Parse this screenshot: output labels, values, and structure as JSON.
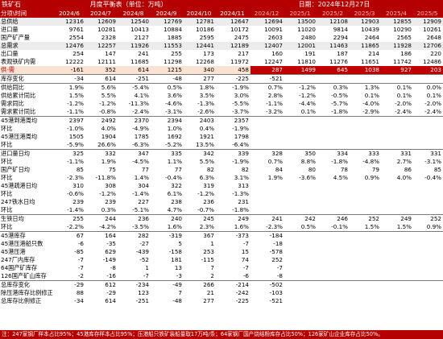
{
  "header": {
    "left": "铁矿石",
    "center": "月度平衡表（单位：万吨）",
    "right": "日期：2024年12月27日"
  },
  "corner_label": "分项\\时间",
  "months": [
    "2024/6",
    "2024/7",
    "2024/8",
    "2024/9",
    "2024/10",
    "2024/11",
    "2024/12",
    "2025/1",
    "2025/2",
    "2025/3",
    "2025/4",
    "2025/5"
  ],
  "rows": [
    {
      "label": "总供给",
      "values": [
        "12316",
        "12609",
        "12540",
        "12769",
        "12781",
        "12647",
        "12694",
        "13500",
        "12108",
        "12903",
        "12855",
        "12909"
      ],
      "style": "hl"
    },
    {
      "label": "进口量",
      "values": [
        "9761",
        "10281",
        "10413",
        "10884",
        "10186",
        "10172",
        "10091",
        "11020",
        "9814",
        "10439",
        "10290",
        "10261"
      ]
    },
    {
      "label": "国产矿产量",
      "values": [
        "2554",
        "2328",
        "2127",
        "1885",
        "2595",
        "2475",
        "2603",
        "2480",
        "2294",
        "2464",
        "2565",
        "2648"
      ]
    },
    {
      "label": "总需求",
      "values": [
        "12476",
        "12257",
        "11926",
        "11553",
        "12441",
        "12189",
        "12407",
        "12001",
        "11463",
        "11865",
        "11928",
        "12706"
      ],
      "style": "hl"
    },
    {
      "label": "出口量",
      "values": [
        "254",
        "147",
        "241",
        "255",
        "173",
        "217",
        "160",
        "191",
        "187",
        "214",
        "186",
        "220"
      ]
    },
    {
      "label": "表观铁矿内需",
      "values": [
        "12222",
        "12111",
        "11685",
        "11298",
        "12268",
        "11972",
        "12247",
        "11810",
        "11276",
        "11651",
        "11742",
        "12486"
      ]
    },
    {
      "label": "供-需",
      "values": [
        "-161",
        "352",
        "614",
        "1215",
        "340",
        "458",
        "287",
        "1499",
        "645",
        "1038",
        "927",
        "203"
      ],
      "style": "sd"
    },
    {
      "label": "库存变化",
      "values": [
        "-34",
        "614",
        "-251",
        "-48",
        "277",
        "-225",
        "-521",
        "",
        "",
        "",
        "",
        ""
      ],
      "style": "sep"
    },
    {
      "label": "供给同比",
      "values": [
        "1.9%",
        "5.6%",
        "-5.4%",
        "0.5%",
        "1.8%",
        "-1.9%",
        "0.7%",
        "-1.2%",
        "0.3%",
        "1.3%",
        "0.1%",
        "0.0%"
      ],
      "style": "sep"
    },
    {
      "label": "供给累计同比",
      "values": [
        "1.5%",
        "5.5%",
        "4.1%",
        "3.6%",
        "3.5%",
        "3.0%",
        "2.8%",
        "-1.2%",
        "-0.5%",
        "0.1%",
        "0.1%",
        "0.1%"
      ]
    },
    {
      "label": "需求同比",
      "values": [
        "-1.2%",
        "-1.2%",
        "-11.3%",
        "-4.6%",
        "-1.3%",
        "-5.5%",
        "-1.1%",
        "-4.4%",
        "-5.7%",
        "-4.0%",
        "-2.0%",
        "-2.0%"
      ]
    },
    {
      "label": "需求累计同比",
      "values": [
        "-1.1%",
        "-0.8%",
        "-2.4%",
        "-3.1%",
        "-2.6%",
        "-3.7%",
        "-3.2%",
        "0.1%",
        "-1.8%",
        "-2.9%",
        "-2.4%",
        "-2.4%"
      ]
    },
    {
      "label": "45港到港周均",
      "values": [
        "2397",
        "2492",
        "2370",
        "2394",
        "2403",
        "2357",
        "",
        "",
        "",
        "",
        "",
        ""
      ],
      "style": "sep"
    },
    {
      "label": "环比",
      "values": [
        "-1.0%",
        "4.0%",
        "-4.9%",
        "1.0%",
        "0.4%",
        "-1.9%",
        "",
        "",
        "",
        "",
        "",
        ""
      ]
    },
    {
      "label": "45港压港周均",
      "values": [
        "1505",
        "1904",
        "1785",
        "1692",
        "1921",
        "1798",
        "",
        "",
        "",
        "",
        "",
        ""
      ]
    },
    {
      "label": "环比",
      "values": [
        "-5.9%",
        "26.6%",
        "-6.3%",
        "-5.2%",
        "13.5%",
        "-6.4%",
        "",
        "",
        "",
        "",
        "",
        ""
      ]
    },
    {
      "label": "进口量日均",
      "values": [
        "325",
        "332",
        "347",
        "335",
        "342",
        "339",
        "328",
        "350",
        "334",
        "333",
        "331",
        "331"
      ],
      "style": "sep"
    },
    {
      "label": "环比",
      "values": [
        "-1.1%",
        "1.9%",
        "-4.5%",
        "1.1%",
        "5.5%",
        "-1.9%",
        "0.7%",
        "8.8%",
        "-1.8%",
        "-4.8%",
        "2.7%",
        "-3.1%"
      ]
    },
    {
      "label": "国产矿日均",
      "values": [
        "85",
        "75",
        "77",
        "77",
        "82",
        "82",
        "84",
        "80",
        "78",
        "79",
        "86",
        "85"
      ]
    },
    {
      "label": "环比",
      "values": [
        "-2.3%",
        "-11.8%",
        "1.4%",
        "-0.4%",
        "6.3%",
        "3.1%",
        "1.9%",
        "-3.6%",
        "4.5%",
        "0.9%",
        "4.0%",
        "-0.4%"
      ]
    },
    {
      "label": "45港疏港日均",
      "values": [
        "310",
        "308",
        "304",
        "322",
        "319",
        "313",
        "",
        "",
        "",
        "",
        "",
        ""
      ]
    },
    {
      "label": "环比",
      "values": [
        "-0.6%",
        "-1.2%",
        "-1.4%",
        "6.1%",
        "-1.2%",
        "-1.3%",
        "",
        "",
        "",
        "",
        "",
        ""
      ]
    },
    {
      "label": "247铁水日均",
      "values": [
        "239",
        "239",
        "227",
        "238",
        "236",
        "231",
        "",
        "",
        "",
        "",
        "",
        ""
      ]
    },
    {
      "label": "环比",
      "values": [
        "-1.4%",
        "0.3%",
        "-5.1%",
        "4.7%",
        "-0.7%",
        "-1.8%",
        "",
        "",
        "",
        "",
        "",
        ""
      ]
    },
    {
      "label": "生铁日均",
      "values": [
        "255",
        "244",
        "236",
        "240",
        "245",
        "249",
        "241",
        "242",
        "246",
        "252",
        "249",
        "252"
      ],
      "style": "sep"
    },
    {
      "label": "环比",
      "values": [
        "-2.2%",
        "-4.2%",
        "-3.5%",
        "1.6%",
        "2.3%",
        "1.6%",
        "-2.3%",
        "0.5%",
        "-0.1%",
        "1.5%",
        "1.5%",
        "0.9%"
      ]
    },
    {
      "label": "45港库存",
      "values": [
        "67",
        "164",
        "282",
        "-319",
        "367",
        "-373",
        "-184",
        "",
        "",
        "",
        "",
        ""
      ],
      "style": "sep"
    },
    {
      "label": "45港压港船只数",
      "values": [
        "-6",
        "-35",
        "-27",
        "5",
        "1",
        "-7",
        "-18",
        "",
        "",
        "",
        "",
        ""
      ]
    },
    {
      "label": "45港压港",
      "values": [
        "-85",
        "629",
        "-439",
        "-158",
        "253",
        "15",
        "-578",
        "",
        "",
        "",
        "",
        ""
      ]
    },
    {
      "label": "247厂内库存",
      "values": [
        "-7",
        "-149",
        "-52",
        "181",
        "-115",
        "74",
        "252",
        "",
        "",
        "",
        "",
        ""
      ]
    },
    {
      "label": "64国产矿库存",
      "values": [
        "-7",
        "-8",
        "1",
        "13",
        "7",
        "-7",
        "-7",
        "",
        "",
        "",
        "",
        ""
      ]
    },
    {
      "label": "126国产矿山库存",
      "values": [
        "-2",
        "-16",
        "-7",
        "-3",
        "2",
        "-6",
        "-8",
        "",
        "",
        "",
        "",
        ""
      ]
    },
    {
      "label": "总库存变化",
      "values": [
        "-29",
        "612",
        "-234",
        "-49",
        "266",
        "-214",
        "-502",
        "",
        "",
        "",
        "",
        ""
      ],
      "style": "sep"
    },
    {
      "label": "除压港库存比例修正",
      "values": [
        "88",
        "-29",
        "123",
        "7",
        "21",
        "-242",
        "-103",
        "",
        "",
        "",
        "",
        ""
      ]
    },
    {
      "label": "总库存比例修正",
      "values": [
        "-34",
        "614",
        "-251",
        "-48",
        "277",
        "-225",
        "-521",
        "",
        "",
        "",
        "",
        ""
      ]
    }
  ],
  "footnote": "注：247家钢厂样本占比95%；45港库存样本占比95%；压港船只铁矿装船量取17万吨/条；64家钢厂国产烧结粉库存占比50%；126家矿山企业库存占比50%。"
}
